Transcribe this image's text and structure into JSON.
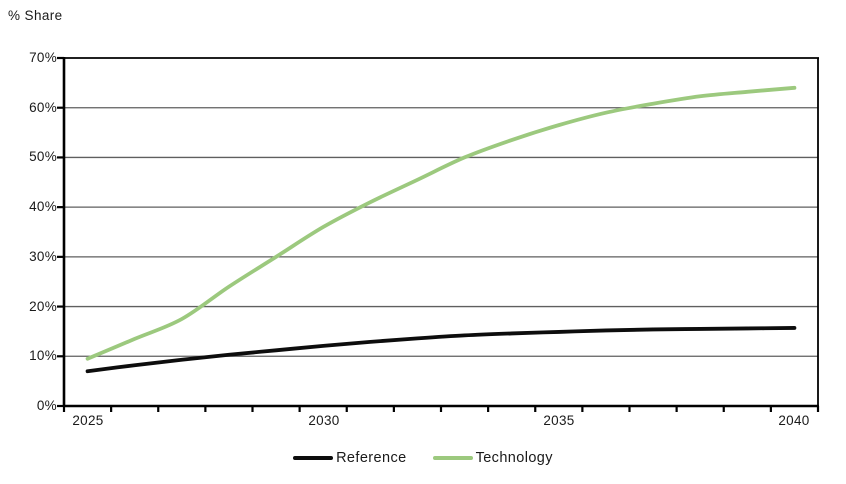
{
  "chart_data": {
    "type": "line",
    "title": "",
    "ylabel": "% Share",
    "xlabel": "",
    "x": [
      2025,
      2026,
      2027,
      2028,
      2029,
      2030,
      2031,
      2032,
      2033,
      2034,
      2035,
      2036,
      2037,
      2038,
      2039,
      2040
    ],
    "series": [
      {
        "name": "Reference",
        "color": "#0d0d0d",
        "values": [
          7.0,
          8.2,
          9.3,
          10.3,
          11.2,
          12.1,
          12.9,
          13.6,
          14.2,
          14.6,
          14.9,
          15.2,
          15.4,
          15.5,
          15.6,
          15.7
        ]
      },
      {
        "name": "Technology",
        "color": "#9cc97e",
        "values": [
          9.5,
          13.5,
          17.5,
          24.0,
          30.0,
          36.0,
          41.0,
          45.5,
          50.0,
          53.5,
          56.5,
          59.0,
          60.8,
          62.3,
          63.2,
          64.0
        ]
      }
    ],
    "ylim": [
      0,
      70
    ],
    "ytick_step": 10,
    "ytick_labels": [
      "0%",
      "10%",
      "20%",
      "30%",
      "40%",
      "50%",
      "60%",
      "70%"
    ],
    "xtick_labels": [
      "2025",
      "2030",
      "2035",
      "2040"
    ],
    "grid": "horizontal",
    "gridline_color": "#5f5f5f",
    "axis_color": "#000000",
    "legend_position": "bottom-center"
  }
}
